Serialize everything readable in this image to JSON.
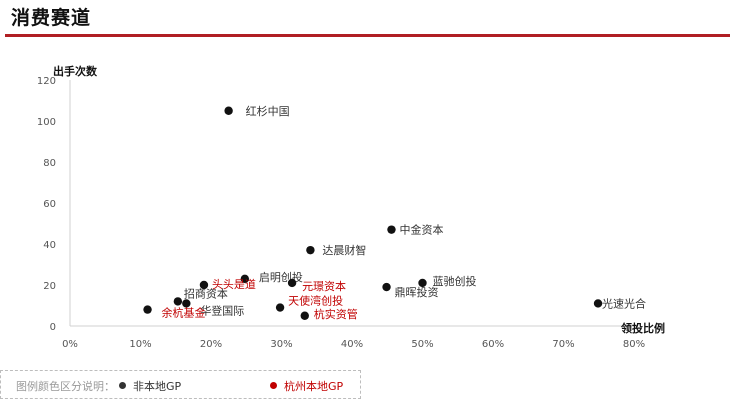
{
  "page_title": "消费赛道",
  "colors": {
    "accent": "#b01e23",
    "non_local": "#111111",
    "local": "#c00000",
    "local_label": "#c00000",
    "non_local_label": "#333333"
  },
  "chart_data": {
    "type": "scatter",
    "ylabel": "出手次数",
    "xlabel": "领投比例",
    "xlim": [
      0,
      0.8
    ],
    "ylim": [
      0,
      120
    ],
    "x_ticks": [
      0,
      0.1,
      0.2,
      0.3,
      0.4,
      0.5,
      0.6,
      0.7,
      0.8
    ],
    "x_tick_labels": [
      "0%",
      "10%",
      "20%",
      "30%",
      "40%",
      "50%",
      "60%",
      "70%",
      "80%"
    ],
    "y_ticks": [
      0,
      20,
      40,
      60,
      80,
      100,
      120
    ],
    "y_tick_labels": [
      "0",
      "20",
      "40",
      "60",
      "80",
      "100",
      "120"
    ],
    "grid": false,
    "points": [
      {
        "label": "红杉中国",
        "x": 0.225,
        "y": 105,
        "group": "non_local"
      },
      {
        "label": "中金资本",
        "x": 0.456,
        "y": 47,
        "group": "non_local"
      },
      {
        "label": "达晨财智",
        "x": 0.341,
        "y": 37,
        "group": "non_local"
      },
      {
        "label": "启明创投",
        "x": 0.248,
        "y": 23,
        "group": "non_local"
      },
      {
        "label": "元璟资本",
        "x": 0.315,
        "y": 21,
        "group": "local"
      },
      {
        "label": "头头是道",
        "x": 0.19,
        "y": 20,
        "group": "local"
      },
      {
        "label": "蓝驰创投",
        "x": 0.5,
        "y": 21,
        "group": "non_local"
      },
      {
        "label": "鼎晖投资",
        "x": 0.449,
        "y": 19,
        "group": "non_local"
      },
      {
        "label": "招商资本",
        "x": 0.153,
        "y": 12,
        "group": "non_local"
      },
      {
        "label": "华登国际",
        "x": 0.165,
        "y": 11,
        "group": "non_local"
      },
      {
        "label": "余杭基金",
        "x": 0.11,
        "y": 8,
        "group": "local"
      },
      {
        "label": "天使湾创投",
        "x": 0.298,
        "y": 9,
        "group": "local"
      },
      {
        "label": "杭实资管",
        "x": 0.333,
        "y": 5,
        "group": "local"
      },
      {
        "label": "光速光合",
        "x": 0.749,
        "y": 11,
        "group": "non_local"
      }
    ]
  },
  "legend": {
    "title": "图例颜色区分说明：",
    "items": [
      {
        "label": "非本地GP",
        "group": "non_local"
      },
      {
        "label": "杭州本地GP",
        "group": "local"
      }
    ]
  }
}
